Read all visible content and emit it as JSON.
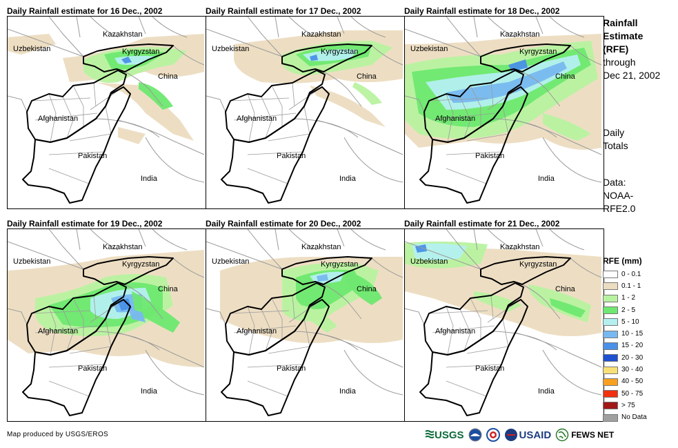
{
  "panels": [
    {
      "title": "Daily Rainfall estimate for 16 Dec., 2002"
    },
    {
      "title": "Daily Rainfall estimate for 17 Dec., 2002"
    },
    {
      "title": "Daily Rainfall estimate for 18 Dec., 2002"
    },
    {
      "title": "Daily Rainfall estimate for 19 Dec., 2002"
    },
    {
      "title": "Daily Rainfall estimate for 20 Dec., 2002"
    },
    {
      "title": "Daily Rainfall estimate for 21 Dec., 2002"
    }
  ],
  "map_labels": {
    "kazakhstan": "Kazakhstan",
    "uzbekistan": "Uzbekistan",
    "kyrgyzstan": "Kyrgyzstan",
    "china": "China",
    "afghanistan": "Afghanistan",
    "pakistan": "Pakistan",
    "india": "India"
  },
  "sidebar": {
    "title_lines": [
      "Rainfall",
      "Estimate",
      "(RFE)"
    ],
    "through_lines": [
      "through",
      "Dec 21, 2002"
    ],
    "daily_lines": [
      "Daily",
      "Totals"
    ],
    "data_lines": [
      "Data:",
      "NOAA-",
      "RFE2.0"
    ]
  },
  "legend": {
    "title": "RFE (mm)",
    "items": [
      {
        "label": "0 - 0.1",
        "color": "#ffffff"
      },
      {
        "label": "0.1 - 1",
        "color": "#ecdcc0"
      },
      {
        "label": "1 - 2",
        "color": "#b8f2a0"
      },
      {
        "label": "2 - 5",
        "color": "#6ee870"
      },
      {
        "label": "5 - 10",
        "color": "#b4f0f0"
      },
      {
        "label": "10 - 15",
        "color": "#78b8f0"
      },
      {
        "label": "15 - 20",
        "color": "#4a90e8"
      },
      {
        "label": "20 - 30",
        "color": "#1e50d0"
      },
      {
        "label": "30 - 40",
        "color": "#f8e078"
      },
      {
        "label": "40 - 50",
        "color": "#f8a020"
      },
      {
        "label": "50 - 75",
        "color": "#f03010"
      },
      {
        "label": "> 75",
        "color": "#a01818"
      },
      {
        "label": "No Data",
        "color": "#a0a0a0"
      }
    ]
  },
  "footer": {
    "credit": "Map produced by USGS/EROS",
    "logos": {
      "usgs": "USGS",
      "usaid": "USAID",
      "fewsnet": "FEWS NET"
    },
    "icons": [
      "usgs-logo-icon",
      "noaa-logo-icon",
      "nws-logo-icon",
      "usaid-seal-icon",
      "fews-net-globe-icon"
    ]
  }
}
